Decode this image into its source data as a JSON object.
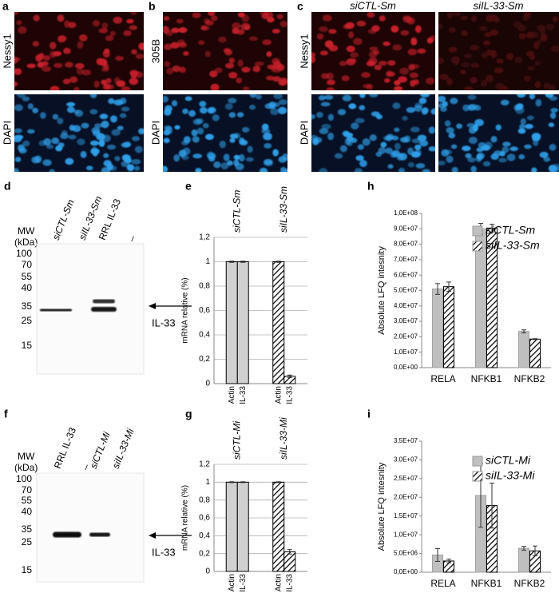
{
  "panels": {
    "a": {
      "letter": "a",
      "labels": [
        "Nessy1",
        "DAPI"
      ]
    },
    "b": {
      "letter": "b",
      "labels": [
        "305B",
        "DAPI"
      ]
    },
    "c": {
      "letter": "c",
      "labels": [
        "Nessy1",
        "DAPI"
      ],
      "columns": [
        "siCTL-Sm",
        "siIL-33-Sm"
      ]
    },
    "d": {
      "letter": "d",
      "mw_label": [
        "MW",
        "(kDa)"
      ],
      "mw_ticks": [
        "100",
        "70",
        "55",
        "40",
        "35",
        "25",
        "15"
      ],
      "lanes": [
        "siCTL-Sm",
        "siIL-33-Sm",
        "RRL IL-33",
        "_"
      ],
      "band_label": "IL-33"
    },
    "f": {
      "letter": "f",
      "mw_label": [
        "MW",
        "(kDa)"
      ],
      "mw_ticks": [
        "100",
        "70",
        "55",
        "40",
        "35",
        "25",
        "15"
      ],
      "lanes": [
        "RRL IL-33",
        "_",
        "siCTL-Mi",
        "siIL-33-Mi"
      ],
      "band_label": "IL-33"
    }
  },
  "chart_data": [
    {
      "panel": "e",
      "type": "bar",
      "ylabel": "mRNA relative (%)",
      "ylim": [
        0,
        1.2
      ],
      "yticks": [
        0,
        {
          "value": 0.2,
          "label": "0,2"
        },
        {
          "value": 0.4,
          "label": "0,4"
        },
        {
          "value": 0.6,
          "label": "0,6"
        },
        {
          "value": 0.8,
          "label": "0,8"
        },
        1,
        {
          "value": 1.2,
          "label": "1,2"
        }
      ],
      "grid": true,
      "series": [
        {
          "name": "siCTL-Sm",
          "color": "#d0d0d0",
          "pattern": "solid",
          "categories": [
            "Actin",
            "IL-33"
          ],
          "values": [
            1,
            1
          ],
          "errors": [
            0.005,
            0.005
          ]
        },
        {
          "name": "siIL-33-Sm",
          "color": "#ffffff",
          "pattern": "hatch",
          "categories": [
            "Actin",
            "IL-33"
          ],
          "values": [
            1,
            0.06
          ],
          "errors": [
            0.005,
            0.01
          ]
        }
      ]
    },
    {
      "panel": "g",
      "type": "bar",
      "ylabel": "mRNA relative (%)",
      "ylim": [
        0,
        1.2
      ],
      "yticks": [
        0,
        {
          "value": 0.2,
          "label": "0,2"
        },
        {
          "value": 0.4,
          "label": "0,4"
        },
        {
          "value": 0.6,
          "label": "0,6"
        },
        {
          "value": 0.8,
          "label": "0,8"
        },
        1,
        {
          "value": 1.2,
          "label": "1,2"
        }
      ],
      "grid": true,
      "series": [
        {
          "name": "siCTL-Mi",
          "color": "#d0d0d0",
          "pattern": "solid",
          "categories": [
            "Actin",
            "IL-33"
          ],
          "values": [
            1,
            1
          ],
          "errors": [
            0.005,
            0.005
          ]
        },
        {
          "name": "siIL-33-Mi",
          "color": "#ffffff",
          "pattern": "hatch",
          "categories": [
            "Actin",
            "IL-33"
          ],
          "values": [
            1,
            0.22
          ],
          "errors": [
            0.005,
            0.025
          ]
        }
      ]
    },
    {
      "panel": "h",
      "type": "grouped_bar",
      "ylabel": "Absolute LFQ intesnity",
      "categories": [
        "RELA",
        "NFKB1",
        "NFKB2"
      ],
      "ylim": [
        0,
        100000000
      ],
      "yticks": [
        {
          "value": 0,
          "label": "0,0E+00"
        },
        {
          "value": 10000000,
          "label": "1,0E+07"
        },
        {
          "value": 20000000,
          "label": "2,0E+07"
        },
        {
          "value": 30000000,
          "label": "3,0E+07"
        },
        {
          "value": 40000000,
          "label": "4,0E+07"
        },
        {
          "value": 50000000,
          "label": "5,0E+07"
        },
        {
          "value": 60000000,
          "label": "6,0E+07"
        },
        {
          "value": 70000000,
          "label": "7,0E+07"
        },
        {
          "value": 80000000,
          "label": "8,0E+07"
        },
        {
          "value": 90000000,
          "label": "9,0E+07"
        },
        {
          "value": 100000000,
          "label": "1,0E+08"
        }
      ],
      "grid": false,
      "legend": "top-right",
      "series": [
        {
          "name": "siCTL-Sm",
          "color": "#bfbfbf",
          "pattern": "solid",
          "values": [
            51000000,
            90000000,
            23500000
          ],
          "errors": [
            3500000,
            3500000,
            1000000
          ]
        },
        {
          "name": "siIL-33-Sm",
          "color": "#ffffff",
          "pattern": "hatch",
          "values": [
            52500000,
            90500000,
            18500000
          ],
          "errors": [
            3000000,
            2500000,
            300000
          ]
        }
      ]
    },
    {
      "panel": "i",
      "type": "grouped_bar",
      "ylabel": "Absolute LFQ intesnity",
      "categories": [
        "RELA",
        "NFKB1",
        "NFKB2"
      ],
      "ylim": [
        0,
        35000000
      ],
      "yticks": [
        {
          "value": 0,
          "label": "0,0E+00"
        },
        {
          "value": 5000000,
          "label": "5,0E+06"
        },
        {
          "value": 10000000,
          "label": "1,0E+07"
        },
        {
          "value": 15000000,
          "label": "1,5E+07"
        },
        {
          "value": 20000000,
          "label": "2,0E+07"
        },
        {
          "value": 25000000,
          "label": "2,5E+07"
        },
        {
          "value": 30000000,
          "label": "3,0E+07"
        },
        {
          "value": 35000000,
          "label": "3,5E+07"
        }
      ],
      "grid": false,
      "legend": "top-right",
      "series": [
        {
          "name": "siCTL-Mi",
          "color": "#bfbfbf",
          "pattern": "solid",
          "values": [
            4600000,
            20500000,
            6400000
          ],
          "errors": [
            1700000,
            8500000,
            500000
          ]
        },
        {
          "name": "siIL-33-Mi",
          "color": "#ffffff",
          "pattern": "hatch",
          "values": [
            3000000,
            17800000,
            5700000
          ],
          "errors": [
            500000,
            6000000,
            1300000
          ]
        }
      ]
    }
  ]
}
